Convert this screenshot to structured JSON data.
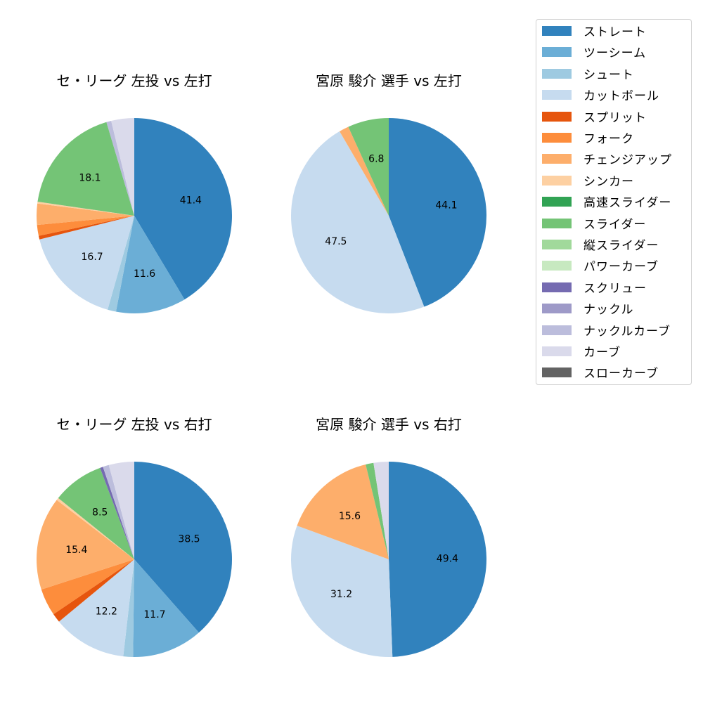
{
  "chart_data": [
    {
      "type": "pie",
      "title": "セ・リーグ 左投 vs 左打",
      "start_angle_deg": 90,
      "direction": "clockwise",
      "categories": [
        "ストレート",
        "ツーシーム",
        "シュート",
        "カットボール",
        "スプリット",
        "フォーク",
        "チェンジアップ",
        "シンカー",
        "スライダー",
        "ナックルカーブ",
        "カーブ"
      ],
      "values": [
        41.4,
        11.6,
        1.4,
        16.7,
        0.6,
        1.8,
        3.5,
        0.3,
        18.1,
        0.8,
        3.8
      ],
      "labels": [
        "41.4",
        "11.6",
        "",
        "16.7",
        "",
        "",
        "",
        "",
        "18.1",
        "",
        ""
      ]
    },
    {
      "type": "pie",
      "title": "宮原 駿介 選手 vs 左打",
      "start_angle_deg": 90,
      "direction": "clockwise",
      "categories": [
        "ストレート",
        "カットボール",
        "チェンジアップ",
        "スライダー"
      ],
      "values": [
        44.1,
        47.5,
        1.6,
        6.8
      ],
      "labels": [
        "44.1",
        "47.5",
        "",
        "6.8"
      ]
    },
    {
      "type": "pie",
      "title": "セ・リーグ 左投 vs 右打",
      "start_angle_deg": 90,
      "direction": "clockwise",
      "categories": [
        "ストレート",
        "ツーシーム",
        "シュート",
        "カットボール",
        "スプリット",
        "フォーク",
        "チェンジアップ",
        "シンカー",
        "スライダー",
        "スクリュー",
        "ナックルカーブ",
        "カーブ"
      ],
      "values": [
        38.5,
        11.7,
        1.6,
        12.2,
        1.5,
        4.5,
        15.4,
        0.4,
        8.5,
        0.5,
        1.0,
        4.2
      ],
      "labels": [
        "38.5",
        "11.7",
        "",
        "12.2",
        "",
        "",
        "15.4",
        "",
        "8.5",
        "",
        "",
        ""
      ]
    },
    {
      "type": "pie",
      "title": "宮原 駿介 選手 vs 右打",
      "start_angle_deg": 90,
      "direction": "clockwise",
      "categories": [
        "ストレート",
        "カットボール",
        "チェンジアップ",
        "スライダー",
        "カーブ"
      ],
      "values": [
        49.4,
        31.2,
        15.6,
        1.3,
        2.5
      ],
      "labels": [
        "49.4",
        "31.2",
        "15.6",
        "",
        ""
      ]
    }
  ],
  "titles": {
    "top_left": "セ・リーグ 左投 vs 左打",
    "top_right": "宮原 駿介 選手 vs 左打",
    "bottom_left": "セ・リーグ 左投 vs 右打",
    "bottom_right": "宮原 駿介 選手 vs 右打"
  },
  "legend": {
    "items": [
      {
        "label": "ストレート",
        "color": "#3182bd"
      },
      {
        "label": "ツーシーム",
        "color": "#6baed6"
      },
      {
        "label": "シュート",
        "color": "#9ecae1"
      },
      {
        "label": "カットボール",
        "color": "#c6dbef"
      },
      {
        "label": "スプリット",
        "color": "#e6550d"
      },
      {
        "label": "フォーク",
        "color": "#fd8d3c"
      },
      {
        "label": "チェンジアップ",
        "color": "#fdae6b"
      },
      {
        "label": "シンカー",
        "color": "#fdd0a2"
      },
      {
        "label": "高速スライダー",
        "color": "#31a354"
      },
      {
        "label": "スライダー",
        "color": "#74c476"
      },
      {
        "label": "縦スライダー",
        "color": "#a1d99b"
      },
      {
        "label": "パワーカーブ",
        "color": "#c7e9c0"
      },
      {
        "label": "スクリュー",
        "color": "#756bb1"
      },
      {
        "label": "ナックル",
        "color": "#9e9ac8"
      },
      {
        "label": "ナックルカーブ",
        "color": "#bcbddc"
      },
      {
        "label": "カーブ",
        "color": "#dadaeb"
      },
      {
        "label": "スローカーブ",
        "color": "#636363"
      }
    ]
  }
}
